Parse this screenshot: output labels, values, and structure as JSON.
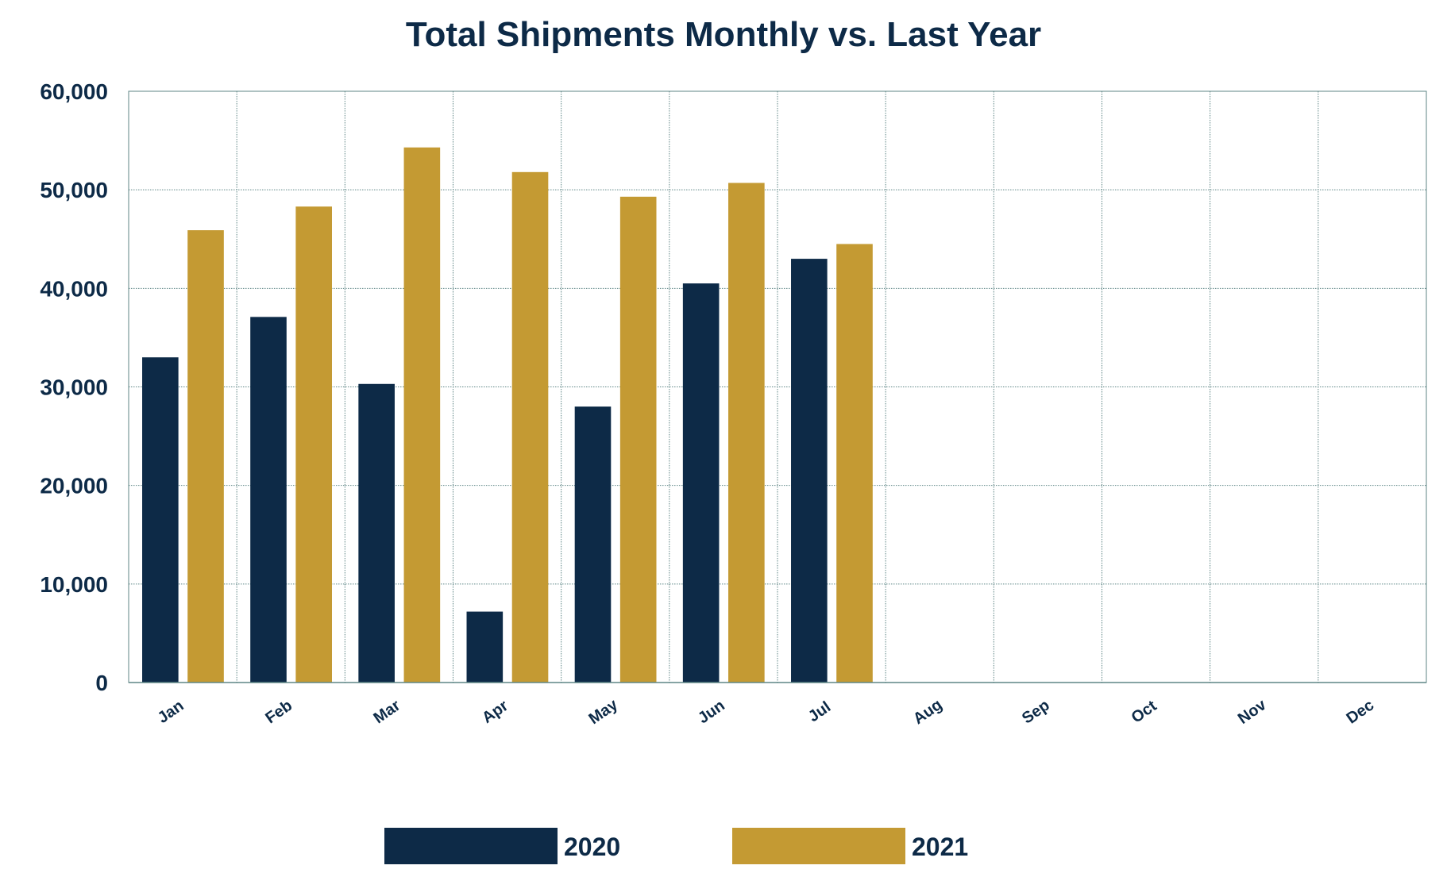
{
  "chart_data": {
    "type": "bar",
    "title": "Total Shipments Monthly vs. Last Year",
    "xlabel": "",
    "ylabel": "",
    "categories": [
      "Jan",
      "Feb",
      "Mar",
      "Apr",
      "May",
      "Jun",
      "Jul",
      "Aug",
      "Sep",
      "Oct",
      "Nov",
      "Dec"
    ],
    "series": [
      {
        "name": "2020",
        "color": "#0d2a47",
        "values": [
          33000,
          37100,
          30300,
          7200,
          28000,
          40500,
          43000,
          null,
          null,
          null,
          null,
          null
        ]
      },
      {
        "name": "2021",
        "color": "#c49a33",
        "values": [
          45900,
          48300,
          54300,
          51800,
          49300,
          50700,
          44500,
          null,
          null,
          null,
          null,
          null
        ]
      }
    ],
    "ylim": [
      0,
      60000
    ],
    "yticks": [
      0,
      10000,
      20000,
      30000,
      40000,
      50000,
      60000
    ],
    "ytick_labels": [
      "0",
      "10,000",
      "20,000",
      "30,000",
      "40,000",
      "50,000",
      "60,000"
    ],
    "grid": true,
    "legend": "bottom-center",
    "colors": {
      "text": "#0d2a47",
      "grid": "#5f8686"
    }
  }
}
